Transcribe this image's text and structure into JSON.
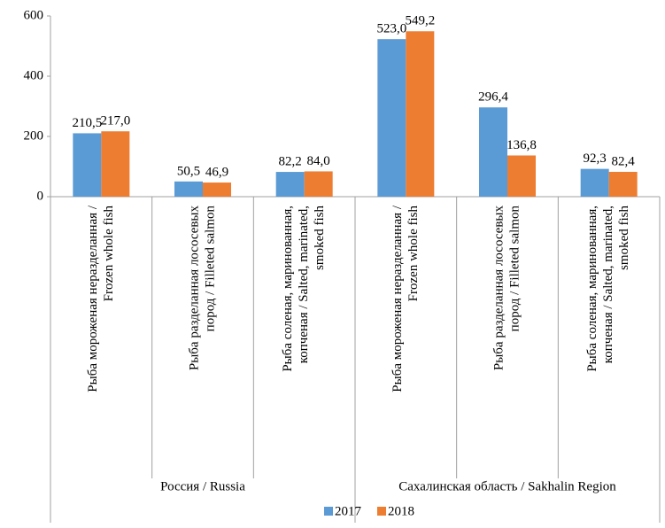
{
  "chart_data": {
    "type": "bar",
    "categories": [
      [
        "Рыба мороженая неразделанная /",
        "Frozen whole fish"
      ],
      [
        "Рыба разделанная лососевых",
        "пород / Filleted salmon"
      ],
      [
        "Рыба соленая, маринованная,",
        "копченая / Salted, marinated,",
        "smoked fish"
      ],
      [
        "Рыба мороженая неразделанная /",
        "Frozen whole fish"
      ],
      [
        "Рыба разделанная лососевых",
        "пород / Filleted salmon"
      ],
      [
        "Рыба соленая, маринованная,",
        "копченая / Salted, marinated,",
        "smoked fish"
      ]
    ],
    "groups": [
      "Россия / Russia",
      "Сахалинская область / Sakhalin Region"
    ],
    "series": [
      {
        "name": "2017",
        "color": "#5b9bd5",
        "values": [
          210.5,
          50.5,
          82.2,
          523.0,
          296.4,
          92.3
        ],
        "value_labels": [
          "210,5",
          "50,5",
          "82,2",
          "523,0",
          "296,4",
          "92,3"
        ]
      },
      {
        "name": "2018",
        "color": "#ed7d31",
        "values": [
          217.0,
          46.9,
          84.0,
          549.2,
          136.8,
          82.4
        ],
        "value_labels": [
          "217,0",
          "46,9",
          "84,0",
          "549,2",
          "136,8",
          "82,4"
        ]
      }
    ],
    "ylim": [
      0,
      600
    ],
    "yticks": [
      0,
      200,
      400,
      600
    ],
    "grid": false
  }
}
